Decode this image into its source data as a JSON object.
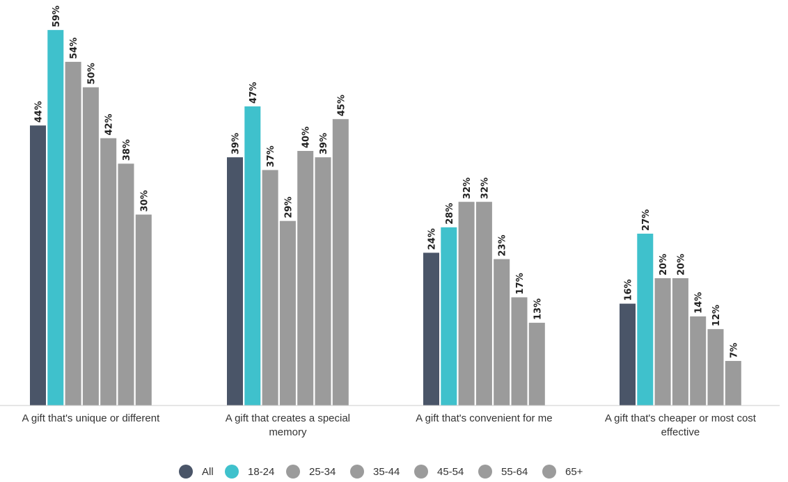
{
  "chart_data": {
    "type": "bar",
    "categories": [
      [
        "A gift that's unique or different"
      ],
      [
        "A gift that creates a special",
        "memory"
      ],
      [
        "A gift that's convenient for me"
      ],
      [
        "A gift that's cheaper or most cost",
        "effective"
      ]
    ],
    "series": [
      {
        "name": "All",
        "color": "#4a5568",
        "values": [
          44,
          39,
          24,
          16
        ],
        "labels": [
          "44%",
          "39%",
          "24%",
          "16%"
        ]
      },
      {
        "name": "18-24",
        "color": "#3fc1cc",
        "values": [
          59,
          47,
          28,
          27
        ],
        "labels": [
          "59%",
          "47%",
          "28%",
          "27%"
        ]
      },
      {
        "name": "25-34",
        "color": "#9b9b9b",
        "values": [
          54,
          37,
          32,
          20
        ],
        "labels": [
          "54%",
          "37%",
          "32%",
          "20%"
        ]
      },
      {
        "name": "35-44",
        "color": "#9b9b9b",
        "values": [
          50,
          29,
          32,
          20
        ],
        "labels": [
          "50%",
          "29%",
          "32%",
          "20%"
        ]
      },
      {
        "name": "45-54",
        "color": "#9b9b9b",
        "values": [
          42,
          40,
          23,
          14
        ],
        "labels": [
          "42%",
          "40%",
          "23%",
          "14%"
        ]
      },
      {
        "name": "55-64",
        "color": "#9b9b9b",
        "values": [
          38,
          39,
          17,
          12
        ],
        "labels": [
          "38%",
          "39%",
          "17%",
          "12%"
        ]
      },
      {
        "name": "65+",
        "color": "#9b9b9b",
        "values": [
          30,
          45,
          13,
          7
        ],
        "labels": [
          "30%",
          "45%",
          "13%",
          "7%"
        ]
      }
    ],
    "ylim": [
      0,
      100
    ],
    "unit": "%",
    "grid": false,
    "legend": "bottom-center",
    "title": "",
    "xlabel": "",
    "ylabel": ""
  }
}
